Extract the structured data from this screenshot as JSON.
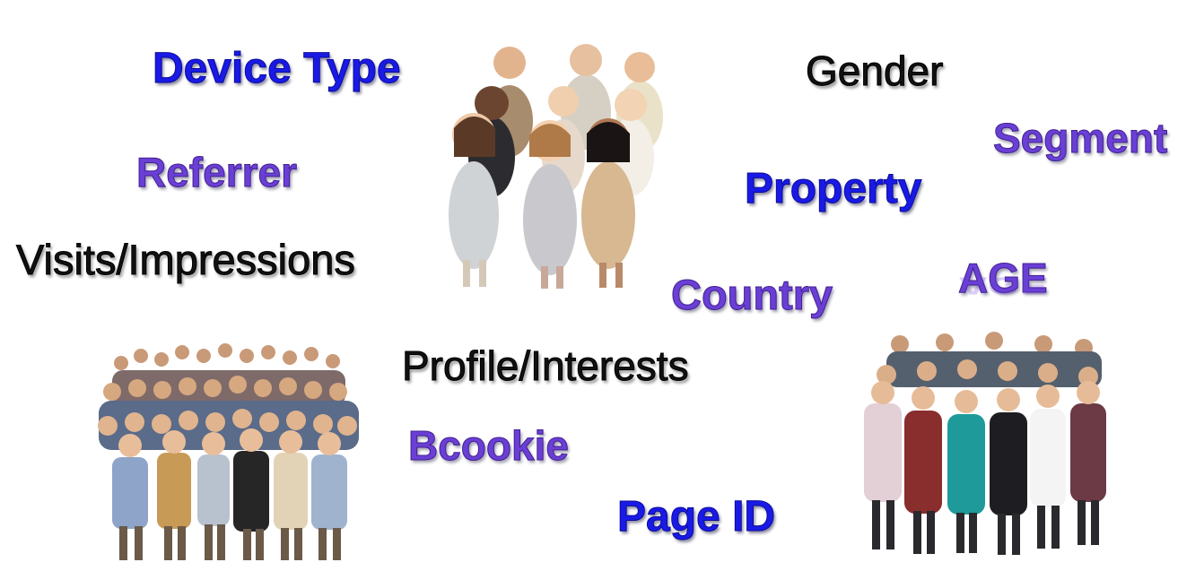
{
  "words": {
    "device_type": "Device Type",
    "gender": "Gender",
    "segment": "Segment",
    "referrer": "Referrer",
    "property": "Property",
    "visits_impressions": "Visits/Impressions",
    "country": "Country",
    "age": "AGE",
    "profile_interests": "Profile/Interests",
    "bcookie": "Bcookie",
    "page_id": "Page ID"
  },
  "colors": {
    "blue_text": "#1a1ae6",
    "purple_text": "#6a3fd6",
    "outline_text": "#111111",
    "background": "#ffffff"
  },
  "images": {
    "top_center": "group-of-people-photo",
    "bottom_left": "crowd-of-people-photo",
    "bottom_right": "business-people-group-photo"
  }
}
